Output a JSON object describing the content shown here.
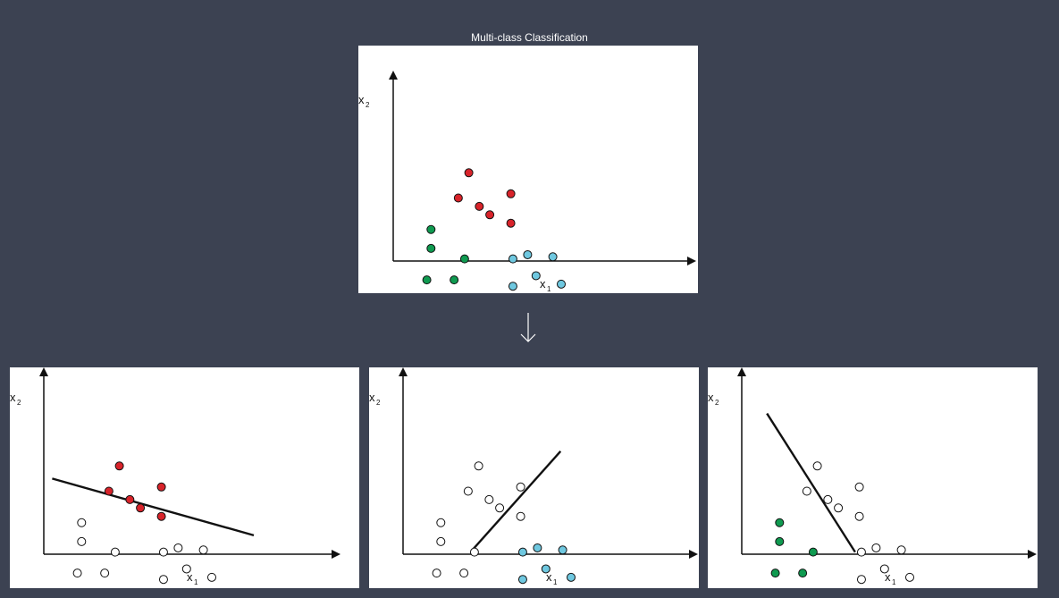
{
  "title": "Multi-class Classification",
  "axis": {
    "x": "x",
    "x_sub": "1",
    "y": "x",
    "y_sub": "2"
  },
  "colors": {
    "background": "#3c4252",
    "class_red": "#d8232a",
    "class_green": "#0f9a50",
    "class_blue": "#6fc8e0",
    "hollow": "#ffffff",
    "stroke": "#111111"
  },
  "icons": {
    "transition": "arrow-down-icon"
  },
  "chart_data": [
    {
      "type": "scatter",
      "title": "Multi-class Classification",
      "xlabel": "x1",
      "ylabel": "x2",
      "series": [
        {
          "class": "red",
          "points": [
            [
              3.6,
              4.2
            ],
            [
              3.1,
              3.0
            ],
            [
              4.1,
              2.6
            ],
            [
              5.6,
              3.2
            ],
            [
              4.6,
              2.2
            ],
            [
              5.6,
              1.8
            ]
          ]
        },
        {
          "class": "green",
          "points": [
            [
              1.8,
              1.5
            ],
            [
              1.8,
              0.6
            ],
            [
              3.4,
              0.1
            ],
            [
              1.6,
              -0.9
            ],
            [
              2.9,
              -0.9
            ]
          ]
        },
        {
          "class": "blue",
          "points": [
            [
              5.7,
              0.1
            ],
            [
              6.4,
              0.3
            ],
            [
              7.6,
              0.2
            ],
            [
              6.8,
              -0.7
            ],
            [
              5.7,
              -1.2
            ],
            [
              8.0,
              -1.1
            ]
          ]
        }
      ]
    },
    {
      "type": "scatter",
      "subplot": "one-vs-rest: red",
      "xlabel": "x1",
      "ylabel": "x2",
      "positive": "red",
      "decision_boundary": [
        [
          0.4,
          3.6
        ],
        [
          10.0,
          0.9
        ]
      ]
    },
    {
      "type": "scatter",
      "subplot": "one-vs-rest: blue",
      "xlabel": "x1",
      "ylabel": "x2",
      "positive": "blue",
      "decision_boundary": [
        [
          3.3,
          0.2
        ],
        [
          7.5,
          4.9
        ]
      ]
    },
    {
      "type": "scatter",
      "subplot": "one-vs-rest: green",
      "xlabel": "x1",
      "ylabel": "x2",
      "positive": "green",
      "decision_boundary": [
        [
          1.2,
          6.7
        ],
        [
          5.4,
          0.1
        ]
      ]
    }
  ]
}
